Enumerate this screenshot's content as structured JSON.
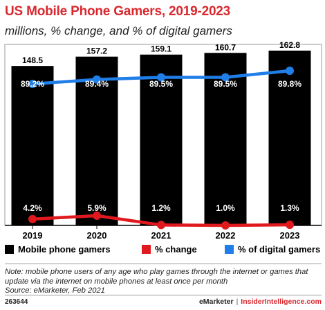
{
  "title": "US Mobile Phone Gamers, 2019-2023",
  "subtitle": "millions, % change, and % of digital gamers",
  "chart_data": {
    "type": "bar",
    "categories": [
      "2019",
      "2020",
      "2021",
      "2022",
      "2023"
    ],
    "series": [
      {
        "name": "Mobile phone gamers",
        "type": "bar",
        "color": "#000000",
        "values": [
          148.5,
          157.2,
          159.1,
          160.7,
          162.8
        ],
        "labels": [
          "148.5",
          "157.2",
          "159.1",
          "160.7",
          "162.8"
        ]
      },
      {
        "name": "% change",
        "type": "line",
        "color": "#e0191e",
        "values": [
          4.2,
          5.9,
          1.2,
          1.0,
          1.3
        ],
        "labels": [
          "4.2%",
          "5.9%",
          "1.2%",
          "1.0%",
          "1.3%"
        ]
      },
      {
        "name": "% of digital gamers",
        "type": "line",
        "color": "#1f7ee8",
        "values": [
          89.2,
          89.4,
          89.5,
          89.5,
          89.8
        ],
        "labels": [
          "89.2%",
          "89.4%",
          "89.5%",
          "89.5%",
          "89.8%"
        ]
      }
    ],
    "legend_position": "bottom",
    "grid": false
  },
  "note_lines": [
    "Note: mobile phone users of any age who play games through the internet or games that",
    "update via the internet on mobile phones at least once per month",
    "Source: eMarketer, Feb 2021"
  ],
  "footer": {
    "id": "263644",
    "brand_left": "eMarketer",
    "separator": "|",
    "brand_right": "InsiderIntelligence.com"
  }
}
